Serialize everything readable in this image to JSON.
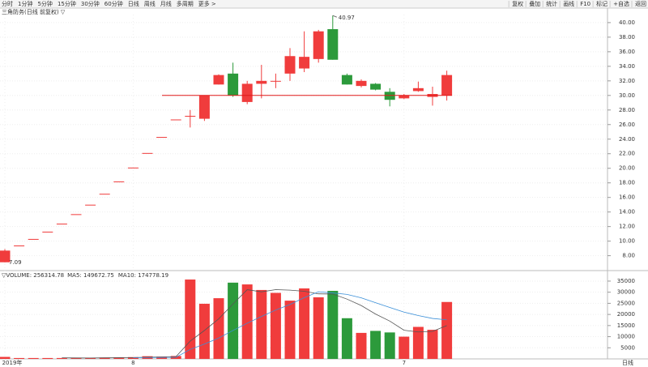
{
  "toolbar": {
    "left": [
      "分时",
      "1分钟",
      "5分钟",
      "15分钟",
      "30分钟",
      "60分钟",
      "日线",
      "周线",
      "月线",
      "多周期",
      "更多 >"
    ],
    "right": [
      "复权",
      "叠加",
      "统计",
      "画线",
      "F10",
      "标记",
      "+自选",
      "返回"
    ]
  },
  "chart_data": [
    {
      "type": "candlestick",
      "title": "三角防务(日线 前复权) ▽",
      "categories": [
        "2019年",
        null,
        null,
        null,
        null,
        null,
        null,
        null,
        null,
        "8",
        null,
        null,
        null,
        null,
        null,
        null,
        null,
        null,
        null,
        null,
        null,
        null,
        null,
        null,
        null,
        null,
        null,
        null,
        "7",
        null,
        null,
        null
      ],
      "open": [
        7.1,
        9.4,
        10.3,
        11.3,
        12.4,
        13.7,
        15.0,
        16.5,
        18.2,
        20.1,
        22.1,
        24.3,
        26.7,
        27.2,
        26.8,
        31.5,
        33.0,
        29.1,
        31.6,
        32.0,
        33.0,
        33.7,
        35.0,
        39.1,
        32.8,
        31.3,
        31.6,
        30.5,
        29.6,
        30.6,
        29.8,
        30.0
      ],
      "high": [
        8.9,
        9.4,
        10.3,
        11.3,
        12.4,
        13.7,
        15.0,
        16.5,
        18.2,
        20.1,
        22.1,
        24.3,
        26.7,
        28.0,
        30.0,
        32.9,
        34.5,
        32.0,
        34.2,
        33.0,
        36.5,
        38.8,
        39.0,
        40.97,
        33.0,
        32.2,
        31.7,
        31.0,
        30.2,
        31.9,
        31.2,
        33.4
      ],
      "low": [
        7.09,
        9.4,
        10.3,
        11.3,
        12.4,
        13.7,
        15.0,
        16.5,
        18.2,
        20.1,
        22.1,
        24.3,
        26.7,
        25.6,
        26.5,
        31.5,
        29.8,
        28.8,
        29.6,
        31.0,
        32.0,
        33.2,
        34.5,
        34.9,
        31.5,
        31.1,
        30.7,
        28.5,
        29.5,
        30.5,
        28.6,
        29.3
      ],
      "close": [
        8.7,
        9.4,
        10.3,
        11.3,
        12.4,
        13.7,
        15.0,
        16.5,
        18.2,
        20.1,
        22.1,
        24.3,
        26.7,
        27.2,
        30.0,
        32.8,
        30.0,
        31.6,
        32.0,
        32.0,
        35.4,
        35.3,
        38.8,
        34.9,
        31.5,
        32.0,
        30.8,
        29.4,
        30.0,
        31.0,
        30.2,
        32.8
      ],
      "up_color": "#f03c3c",
      "down_color": "#2c9a3b",
      "ylim": [
        6.4,
        41.1
      ],
      "yticks": [
        {
          "value": 8,
          "label": "8.00"
        },
        {
          "value": 10,
          "label": "10.00"
        },
        {
          "value": 12,
          "label": "12.00"
        },
        {
          "value": 14,
          "label": "14.00"
        },
        {
          "value": 16,
          "label": "16.00"
        },
        {
          "value": 18,
          "label": "18.00"
        },
        {
          "value": 20,
          "label": "20.00"
        },
        {
          "value": 22,
          "label": "22.00"
        },
        {
          "value": 24,
          "label": "24.00"
        },
        {
          "value": 26,
          "label": "26.00"
        },
        {
          "value": 28,
          "label": "28.00"
        },
        {
          "value": 30,
          "label": "30.00"
        },
        {
          "value": 32,
          "label": "32.00"
        },
        {
          "value": 34,
          "label": "34.00"
        },
        {
          "value": 36,
          "label": "36.00"
        },
        {
          "value": 38,
          "label": "38.00"
        },
        {
          "value": 40,
          "label": "40.00"
        }
      ],
      "hline": 30,
      "hline_color": "#e01818",
      "max_label": 40.97,
      "min_label": 7.09,
      "grid": true
    },
    {
      "type": "bar",
      "title": "▽VOLUME: 256314.78",
      "bottom_right": "日线",
      "values": [
        900,
        400,
        400,
        400,
        400,
        400,
        500,
        600,
        700,
        800,
        1200,
        1000,
        1300,
        35700,
        24800,
        27300,
        34300,
        33500,
        31000,
        29700,
        26200,
        31700,
        27700,
        30600,
        18300,
        11700,
        12600,
        11900,
        10000,
        14400,
        13100,
        25600
      ],
      "series": [
        {
          "name": "MA5: 149672.75",
          "color": "#555555",
          "values": [
            null,
            null,
            null,
            null,
            500,
            440,
            420,
            480,
            520,
            600,
            760,
            860,
            1000,
            8000,
            12800,
            18020,
            24680,
            31120,
            30180,
            31160,
            30940,
            30420,
            29260,
            29180,
            26900,
            24000,
            20180,
            17020,
            12900,
            12120,
            12400,
            15000
          ]
        },
        {
          "name": "MA10: 174778.19",
          "color": "#3a8fd8",
          "values": [
            null,
            null,
            null,
            null,
            null,
            null,
            null,
            null,
            null,
            550,
            580,
            640,
            730,
            4260,
            6700,
            9390,
            12770,
            16060,
            19090,
            21980,
            24480,
            27550,
            30190,
            29680,
            29030,
            27470,
            25300,
            23140,
            21040,
            19510,
            18200,
            17590
          ]
        }
      ],
      "ylim": [
        0,
        37900
      ],
      "yticks": [
        5000,
        10000,
        15000,
        20000,
        25000,
        30000,
        35000
      ]
    }
  ]
}
